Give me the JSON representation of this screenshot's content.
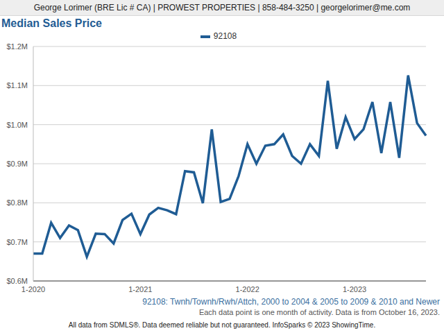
{
  "chart_data": {
    "type": "line",
    "header": "George Lorimer (BRE Lic # CA) | PROWEST PROPERTIES | 858-484-3250 | georgelorimer@me.com",
    "title": "Median Sales Price",
    "annotations": [
      "92108: Twnh/Townh/Rwh/Attch, 2000 to 2004 & 2005 to 2009 & 2010 and Newer",
      "Each data point is one month of activity. Data is from October 16, 2023.",
      "All data from SDMLS®. Data deemed reliable but not guaranteed. InfoSparks © 2023 ShowingTime."
    ],
    "categories": [
      "1-2020",
      null,
      null,
      null,
      null,
      null,
      null,
      null,
      null,
      null,
      null,
      null,
      "1-2021",
      null,
      null,
      null,
      null,
      null,
      null,
      null,
      null,
      null,
      null,
      null,
      "1-2022",
      null,
      null,
      null,
      null,
      null,
      null,
      null,
      null,
      null,
      null,
      null,
      "1-2023",
      null,
      null,
      null,
      null,
      null,
      null,
      null,
      null
    ],
    "series": [
      {
        "name": "92108",
        "color": "#1f5c94",
        "values": [
          670000,
          670000,
          749000,
          710000,
          742000,
          730000,
          662000,
          721000,
          720000,
          696000,
          756000,
          772000,
          720000,
          770000,
          787000,
          781000,
          771000,
          881000,
          878000,
          799000,
          988000,
          802000,
          810000,
          868000,
          950000,
          900000,
          946000,
          950000,
          975000,
          920000,
          900000,
          950000,
          920000,
          1112000,
          938000,
          1019000,
          963000,
          988000,
          1058000,
          927000,
          1058000,
          915000,
          1126000,
          1004000,
          972000
        ]
      }
    ],
    "ylim": [
      600000,
      1200000
    ],
    "yticks": [
      {
        "value": 600000,
        "label": "$0.6M"
      },
      {
        "value": 700000,
        "label": "$0.7M"
      },
      {
        "value": 800000,
        "label": "$0.8M"
      },
      {
        "value": 900000,
        "label": "$0.9M"
      },
      {
        "value": 1000000,
        "label": "$1.0M"
      },
      {
        "value": 1100000,
        "label": "$1.1M"
      },
      {
        "value": 1200000,
        "label": "$1.2M"
      }
    ],
    "grid": true,
    "legend": "top"
  }
}
